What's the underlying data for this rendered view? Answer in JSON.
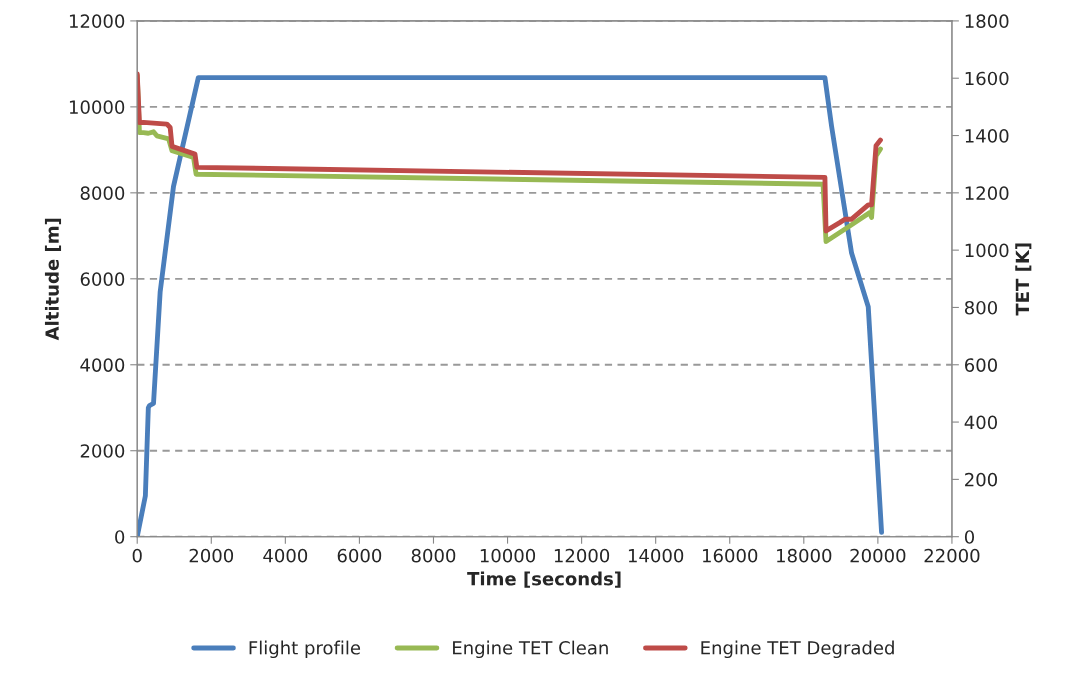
{
  "chart_data": {
    "type": "line",
    "xlabel": "Time [seconds]",
    "ylabel": "Altitude [m]",
    "y2label": "TET [K]",
    "xlim": [
      0,
      22000
    ],
    "xticks": [
      0,
      2000,
      4000,
      6000,
      8000,
      10000,
      12000,
      14000,
      16000,
      18000,
      20000,
      22000
    ],
    "ylim": [
      0,
      12000
    ],
    "yticks": [
      0,
      2000,
      4000,
      6000,
      8000,
      10000,
      12000
    ],
    "y2lim": [
      0,
      1800
    ],
    "y2ticks": [
      0,
      200,
      400,
      600,
      800,
      1000,
      1200,
      1400,
      1600,
      1800
    ],
    "grid": "y",
    "legend": "bottom",
    "marker": "none",
    "line_style": "solid",
    "series": [
      {
        "name": "Flight profile",
        "color": "#4a7ebb",
        "x": [
          0,
          220,
          300,
          330,
          440,
          620,
          980,
          1650,
          18570,
          18750,
          19290,
          19740,
          20100
        ],
        "values": [
          0,
          950,
          3000,
          3050,
          3100,
          5700,
          8150,
          10680,
          10680,
          9550,
          6600,
          5350,
          100
        ]
      },
      {
        "name": "Engine TET Clean",
        "color": "#98b954",
        "axis": "y2",
        "x": [
          0,
          60,
          170,
          300,
          440,
          530,
          850,
          940,
          1520,
          1590,
          18520,
          18600,
          19250,
          19780,
          19830,
          19950,
          20070
        ],
        "values": [
          1610,
          1410,
          1410,
          1408,
          1413,
          1399,
          1388,
          1347,
          1324,
          1265,
          1230,
          1030,
          1085,
          1131,
          1114,
          1329,
          1353
        ]
      },
      {
        "name": "Engine TET Degraded",
        "color": "#be4b48",
        "axis": "y2",
        "x": [
          0,
          60,
          170,
          800,
          890,
          940,
          1560,
          1610,
          18570,
          18600,
          18970,
          19110,
          19290,
          19740,
          19830,
          19950,
          20070
        ],
        "values": [
          1615,
          1445,
          1446,
          1440,
          1428,
          1362,
          1335,
          1289,
          1254,
          1067,
          1096,
          1108,
          1108,
          1158,
          1158,
          1364,
          1384
        ]
      }
    ]
  }
}
